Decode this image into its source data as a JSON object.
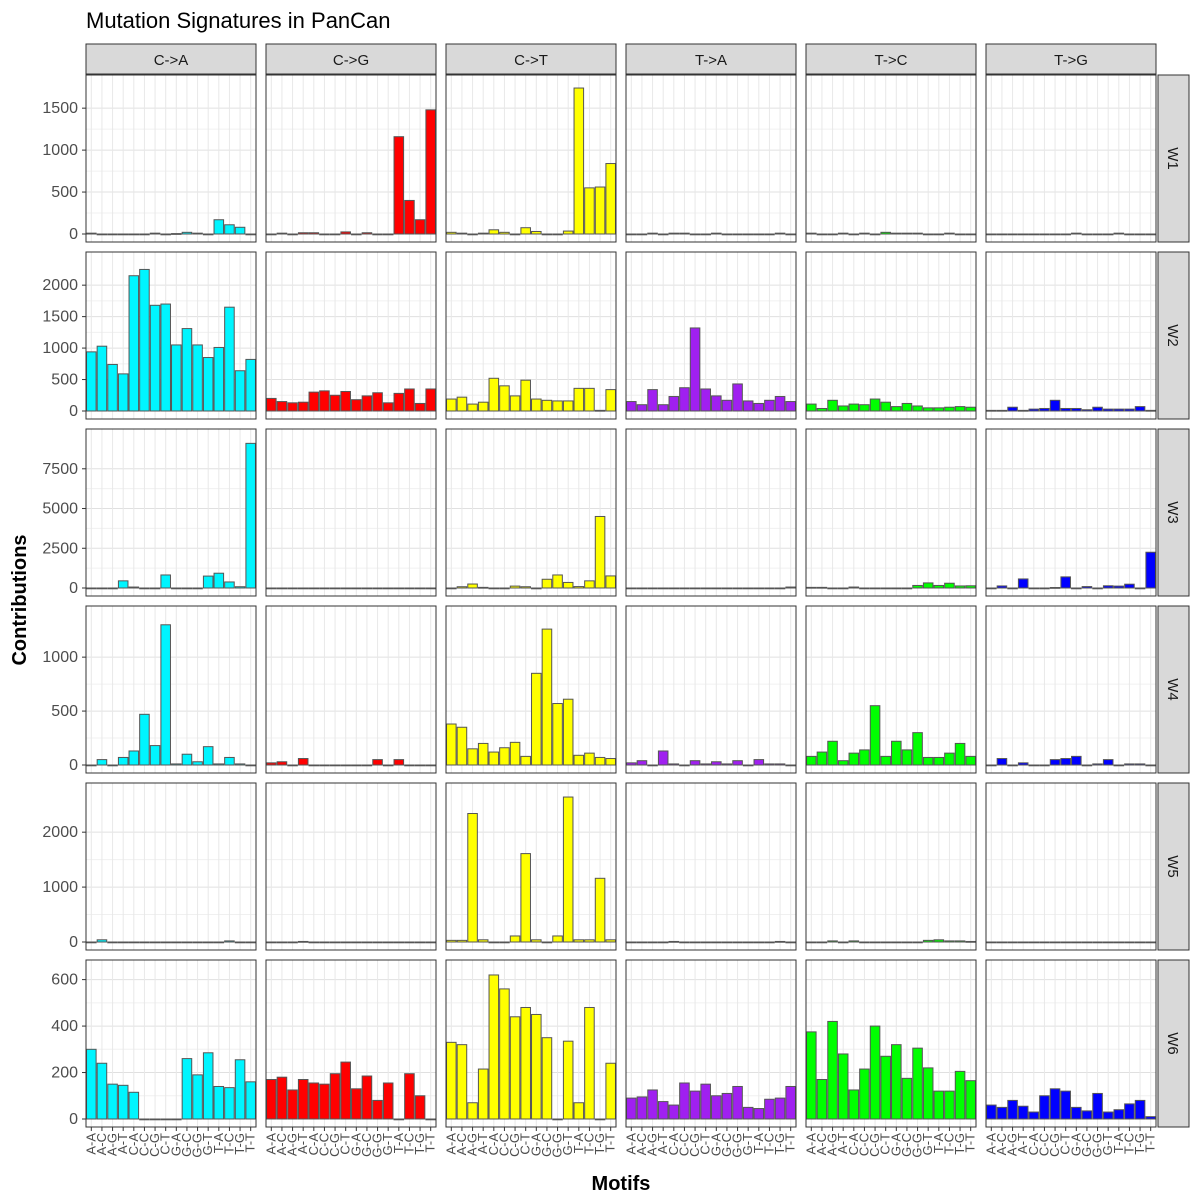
{
  "chart_data": {
    "type": "bar",
    "title": "Mutation Signatures in PanCan",
    "xlabel": "Motifs",
    "ylabel": "Contributions",
    "grid": true,
    "legend": "none",
    "columns": [
      "C->A",
      "C->G",
      "C->T",
      "T->A",
      "T->C",
      "T->G"
    ],
    "rows": [
      "W1",
      "W2",
      "W3",
      "W4",
      "W5",
      "W6"
    ],
    "colors": {
      "C->A": "#00f5ff",
      "C->G": "#ff0000",
      "C->T": "#ffff00",
      "T->A": "#a020f0",
      "T->C": "#00ff00",
      "T->G": "#0000ff"
    },
    "categories": [
      "A-A",
      "A-C",
      "A-G",
      "A-T",
      "C-A",
      "C-C",
      "C-G",
      "C-T",
      "G-A",
      "G-C",
      "G-G",
      "G-T",
      "T-A",
      "T-C",
      "T-G",
      "T-T"
    ],
    "row_ylim": {
      "W1": [
        0,
        1800
      ],
      "W2": [
        0,
        2400
      ],
      "W3": [
        0,
        9500
      ],
      "W4": [
        0,
        1400
      ],
      "W5": [
        0,
        2750
      ],
      "W6": [
        0,
        650
      ]
    },
    "row_yticks": {
      "W1": [
        0,
        500,
        1000,
        1500
      ],
      "W2": [
        0,
        500,
        1000,
        1500,
        2000
      ],
      "W3": [
        0,
        2500,
        5000,
        7500
      ],
      "W4": [
        0,
        500,
        1000
      ],
      "W5": [
        0,
        1000,
        2000
      ],
      "W6": [
        0,
        200,
        400,
        600
      ]
    },
    "values": {
      "W1": {
        "C->A": [
          10,
          0,
          0,
          0,
          0,
          0,
          10,
          0,
          5,
          20,
          10,
          0,
          170,
          110,
          80,
          0
        ],
        "C->G": [
          0,
          10,
          0,
          15,
          15,
          0,
          0,
          25,
          0,
          15,
          0,
          0,
          1160,
          400,
          170,
          1480
        ],
        "C->T": [
          20,
          10,
          0,
          10,
          50,
          20,
          0,
          75,
          30,
          0,
          0,
          35,
          1740,
          550,
          560,
          840
        ],
        "T->A": [
          0,
          0,
          10,
          0,
          10,
          10,
          0,
          0,
          10,
          0,
          0,
          0,
          0,
          0,
          10,
          0
        ],
        "T->C": [
          10,
          0,
          0,
          10,
          0,
          10,
          0,
          20,
          10,
          10,
          10,
          0,
          0,
          10,
          0,
          0
        ],
        "T->G": [
          0,
          0,
          0,
          0,
          0,
          0,
          0,
          0,
          10,
          0,
          0,
          0,
          10,
          0,
          0,
          0
        ]
      },
      "W2": {
        "C->A": [
          940,
          1030,
          740,
          590,
          2150,
          2250,
          1680,
          1700,
          1050,
          1310,
          1050,
          850,
          1010,
          1650,
          640,
          820
        ],
        "C->G": [
          200,
          150,
          130,
          140,
          300,
          320,
          250,
          310,
          180,
          240,
          290,
          130,
          280,
          350,
          120,
          350
        ],
        "C->T": [
          190,
          220,
          110,
          140,
          520,
          400,
          240,
          490,
          190,
          170,
          160,
          160,
          360,
          360,
          10,
          340
        ],
        "T->A": [
          150,
          100,
          340,
          100,
          230,
          370,
          1320,
          350,
          240,
          170,
          430,
          160,
          120,
          170,
          230,
          150
        ],
        "T->C": [
          110,
          40,
          170,
          80,
          110,
          100,
          190,
          140,
          70,
          120,
          80,
          50,
          50,
          60,
          70,
          60
        ],
        "T->G": [
          10,
          10,
          60,
          10,
          30,
          40,
          170,
          40,
          40,
          20,
          60,
          30,
          30,
          30,
          70,
          10
        ]
      },
      "W3": {
        "C->A": [
          0,
          0,
          0,
          450,
          60,
          0,
          0,
          820,
          0,
          0,
          0,
          750,
          930,
          380,
          80,
          9100
        ],
        "C->G": [
          0,
          0,
          0,
          0,
          0,
          0,
          0,
          0,
          0,
          0,
          0,
          0,
          0,
          0,
          0,
          0
        ],
        "C->T": [
          0,
          80,
          250,
          40,
          0,
          0,
          120,
          80,
          0,
          550,
          820,
          350,
          90,
          450,
          4500,
          760
        ],
        "T->A": [
          0,
          0,
          0,
          0,
          0,
          0,
          0,
          0,
          0,
          0,
          0,
          0,
          0,
          0,
          0,
          60
        ],
        "T->C": [
          40,
          40,
          0,
          0,
          60,
          0,
          0,
          0,
          0,
          0,
          160,
          320,
          160,
          300,
          130,
          140
        ],
        "T->G": [
          0,
          130,
          0,
          570,
          0,
          0,
          30,
          700,
          0,
          90,
          0,
          140,
          120,
          240,
          0,
          2250
        ]
      },
      "W4": {
        "C->A": [
          0,
          50,
          0,
          70,
          130,
          470,
          180,
          1300,
          10,
          100,
          30,
          170,
          10,
          70,
          10,
          0
        ],
        "C->G": [
          20,
          30,
          0,
          60,
          0,
          0,
          0,
          0,
          0,
          0,
          50,
          0,
          50,
          0,
          0,
          0
        ],
        "C->T": [
          380,
          350,
          150,
          200,
          120,
          160,
          210,
          80,
          850,
          1260,
          570,
          610,
          90,
          110,
          70,
          60
        ],
        "T->A": [
          20,
          40,
          0,
          130,
          10,
          0,
          40,
          10,
          30,
          10,
          40,
          0,
          50,
          10,
          10,
          0
        ],
        "T->C": [
          80,
          120,
          220,
          40,
          110,
          140,
          550,
          80,
          220,
          140,
          300,
          70,
          70,
          110,
          200,
          80
        ],
        "T->G": [
          0,
          60,
          0,
          20,
          0,
          0,
          50,
          60,
          80,
          0,
          10,
          50,
          0,
          10,
          10,
          0
        ]
      },
      "W5": {
        "C->A": [
          0,
          40,
          0,
          0,
          0,
          0,
          0,
          0,
          0,
          0,
          0,
          0,
          0,
          20,
          0,
          0
        ],
        "C->G": [
          0,
          0,
          0,
          10,
          0,
          0,
          0,
          0,
          0,
          0,
          0,
          0,
          0,
          0,
          0,
          0
        ],
        "C->T": [
          30,
          30,
          2340,
          40,
          0,
          0,
          110,
          1610,
          40,
          0,
          110,
          2640,
          40,
          40,
          1160,
          40
        ],
        "T->A": [
          0,
          0,
          0,
          0,
          10,
          0,
          0,
          0,
          0,
          0,
          0,
          0,
          0,
          0,
          10,
          0
        ],
        "T->C": [
          0,
          0,
          20,
          0,
          20,
          0,
          0,
          0,
          0,
          0,
          0,
          30,
          40,
          20,
          20,
          10
        ],
        "T->G": [
          0,
          0,
          0,
          0,
          0,
          0,
          0,
          0,
          0,
          0,
          0,
          0,
          0,
          0,
          0,
          0
        ]
      },
      "W6": {
        "C->A": [
          300,
          240,
          150,
          145,
          115,
          0,
          0,
          0,
          0,
          260,
          190,
          285,
          140,
          135,
          255,
          160
        ],
        "C->G": [
          170,
          180,
          125,
          170,
          155,
          150,
          195,
          245,
          130,
          185,
          80,
          155,
          0,
          195,
          100,
          0
        ],
        "C->T": [
          330,
          320,
          70,
          215,
          620,
          560,
          440,
          480,
          450,
          350,
          0,
          335,
          70,
          480,
          0,
          240
        ],
        "T->A": [
          90,
          95,
          125,
          75,
          60,
          155,
          120,
          150,
          100,
          110,
          140,
          50,
          45,
          85,
          90,
          140
        ],
        "T->C": [
          375,
          170,
          420,
          280,
          125,
          215,
          400,
          270,
          320,
          175,
          305,
          220,
          120,
          120,
          205,
          165
        ],
        "T->G": [
          60,
          50,
          80,
          55,
          30,
          100,
          130,
          120,
          50,
          35,
          110,
          30,
          40,
          65,
          80,
          10
        ]
      }
    }
  }
}
